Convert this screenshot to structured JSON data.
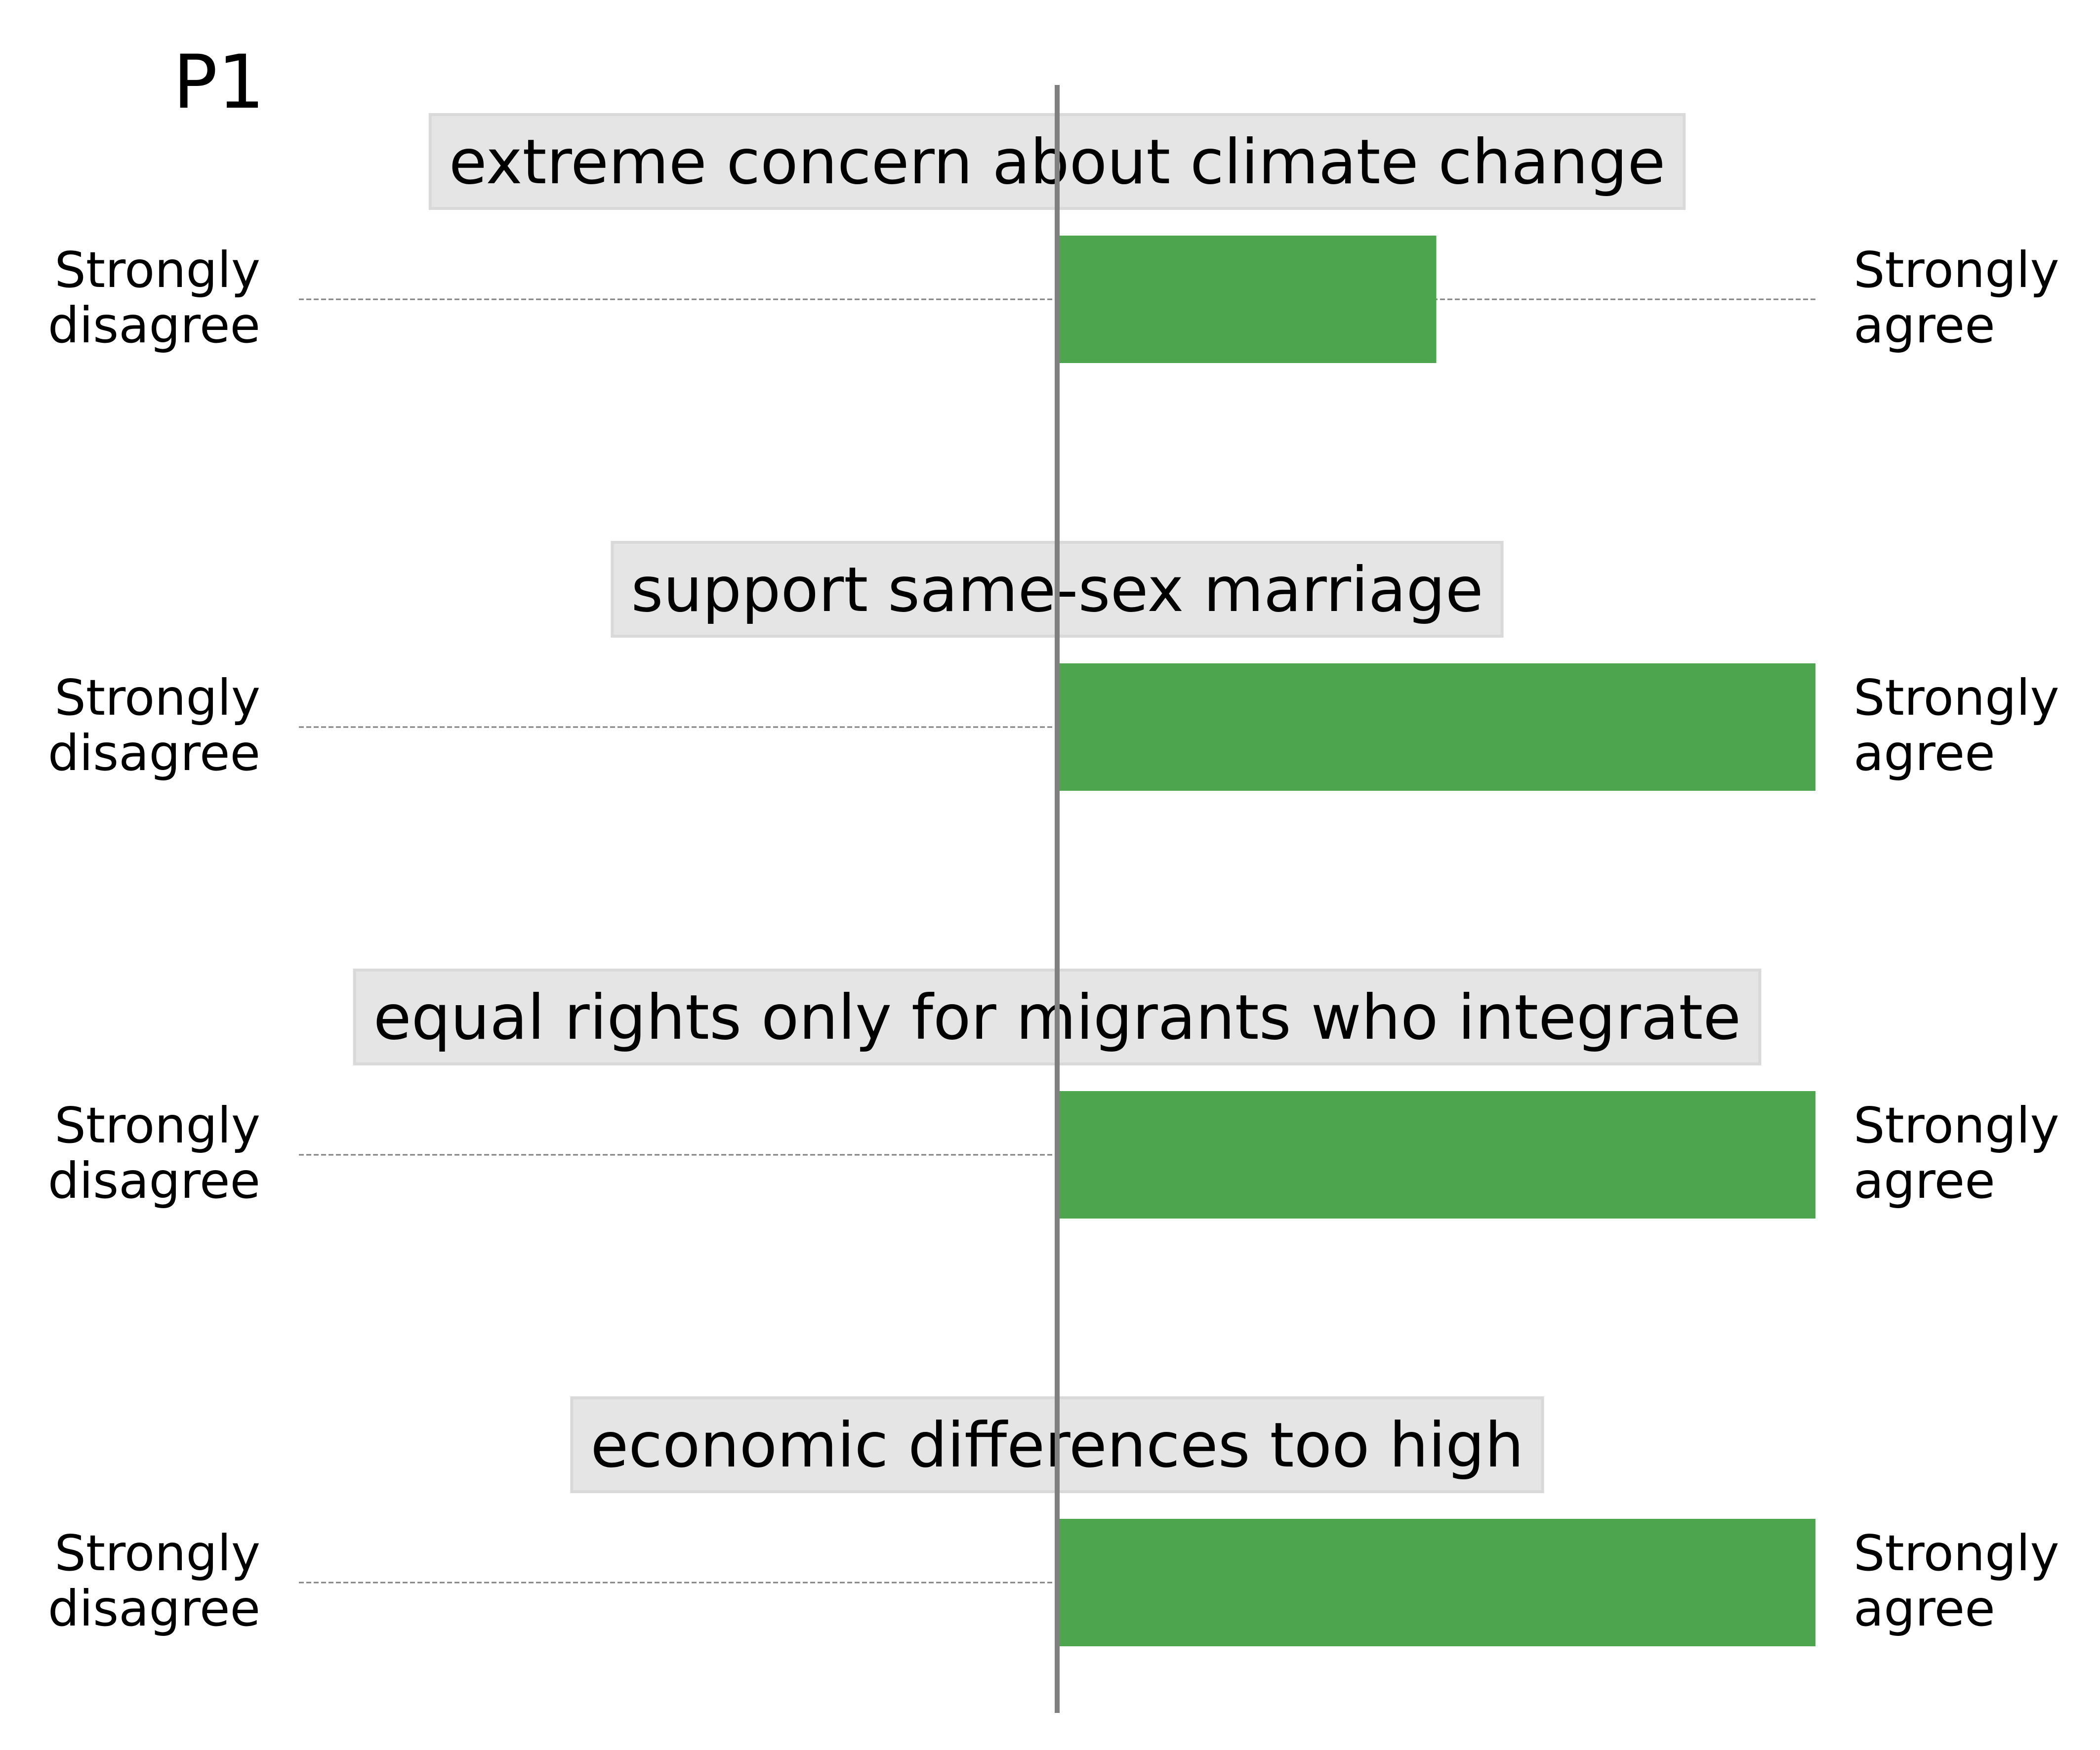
{
  "chart_data": {
    "type": "bar",
    "orientation": "horizontal",
    "panel_label": "P1",
    "scale": {
      "min": -1,
      "max": 1,
      "center": 0
    },
    "left_label": {
      "line1": "Strongly",
      "line2": "disagree"
    },
    "right_label": {
      "line1": "Strongly",
      "line2": "agree"
    },
    "categories": [
      "extreme concern about climate change",
      "support same-sex marriage",
      "equal rights only for migrants who integrate",
      "economic differences too high"
    ],
    "values": [
      0.5,
      1.0,
      1.0,
      1.0
    ],
    "bar_color": "#4da64d",
    "label_box_color": "#e5e5e5",
    "axis_color": "#808080"
  }
}
